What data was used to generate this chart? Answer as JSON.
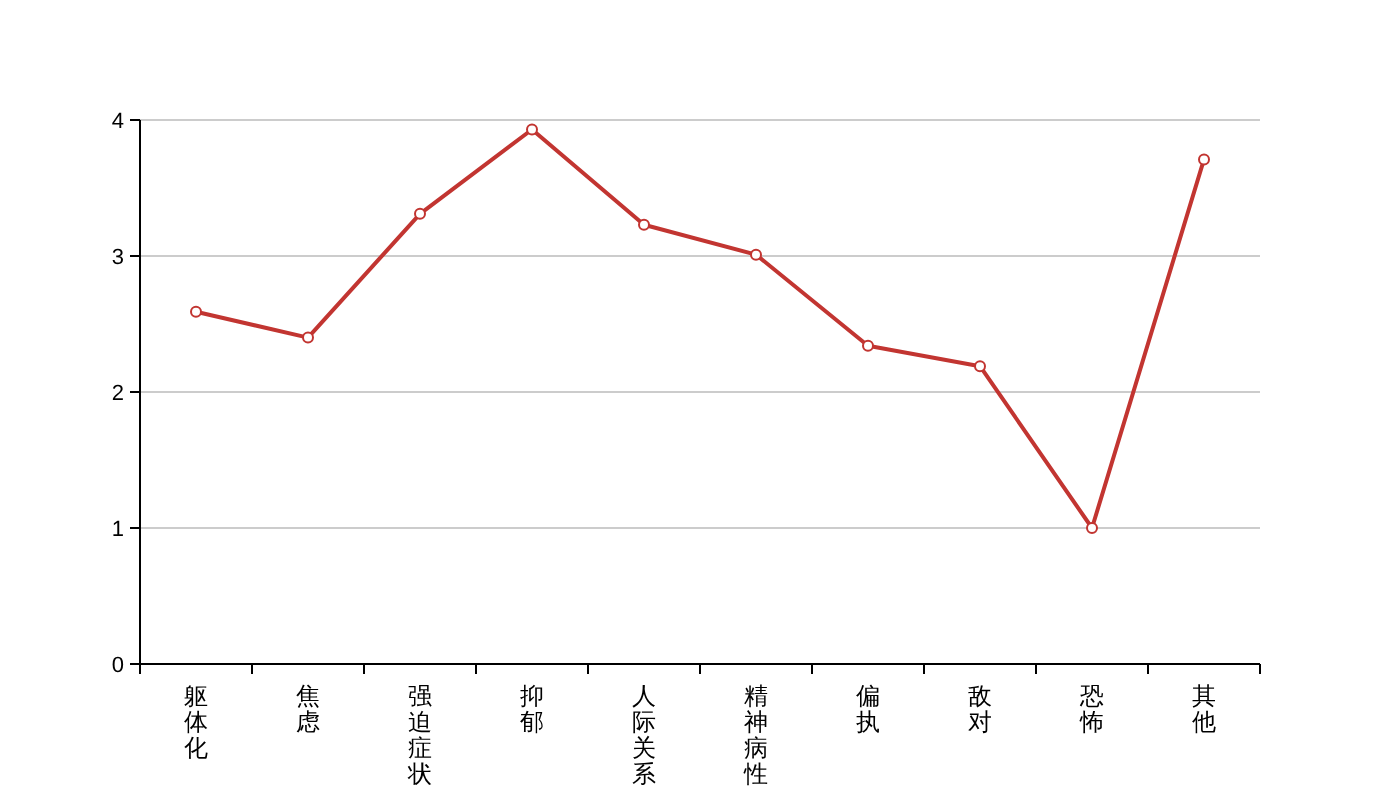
{
  "chart_data": {
    "type": "line",
    "categories": [
      "躯体化",
      "焦虑",
      "强迫症状",
      "抑郁",
      "人际关系",
      "精神病性",
      "偏执",
      "敌对",
      "恐怖",
      "其他"
    ],
    "series": [
      {
        "color": "#c23531",
        "values": [
          2.59,
          2.4,
          3.31,
          3.93,
          3.23,
          3.01,
          2.34,
          2.19,
          1.0,
          3.71
        ]
      }
    ],
    "ylim": [
      0,
      4
    ],
    "yticks": [
      0,
      1,
      2,
      3,
      4
    ],
    "grid": "y",
    "marker": "circle"
  }
}
